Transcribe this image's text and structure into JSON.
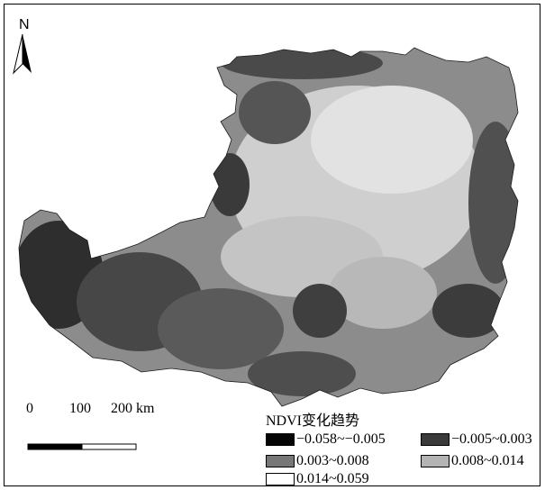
{
  "map": {
    "north_label": "N",
    "scale_bar": {
      "labels": [
        "0",
        "100",
        "200 km"
      ]
    },
    "legend": {
      "title": "NDVI变化趋势",
      "items": [
        {
          "label": "−0.058~−0.005",
          "color": "#050505"
        },
        {
          "label": "−0.005~0.003",
          "color": "#3a3a3a"
        },
        {
          "label": "0.003~0.008",
          "color": "#777777"
        },
        {
          "label": "0.008~0.014",
          "color": "#b4b4b4"
        },
        {
          "label": "0.014~0.059",
          "color": "#ffffff"
        }
      ]
    }
  }
}
